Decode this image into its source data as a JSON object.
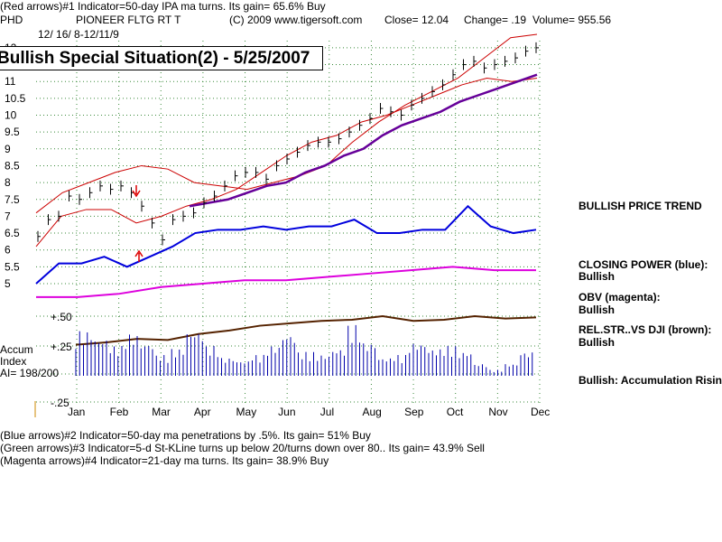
{
  "header": {
    "line1": "(Red arrows)#1 Indicator=50-day IPA ma turns. Its gain= 65.6% Buy",
    "symbol": "PHD",
    "name": "PIONEER FLTG RT T",
    "copyright": "(C) 2009 www.tigersoft.com",
    "close": "Close=  12.04",
    "change": "Change= .19",
    "volume": "Volume= 955.56",
    "dates": "12/ 16/ 8-12/11/9"
  },
  "banner": "Bullish Special Situation(2) - 5/25/2007",
  "footer": {
    "line1": "(Blue arrows)#2 Indicator=50-day ma penetrations by .5%. Its gain= 51% Buy",
    "line2": "(Green arrows)#3 Indicator=5-d St-KLine turns up below 20/turns down over 80.. Its gain= 43.9% Sell",
    "line3": "(Magenta arrows)#4 Indicator=21-day ma turns. Its gain= 38.9% Buy"
  },
  "side_labels": {
    "price_trend": "BULLISH PRICE TREND",
    "closing_power": "CLOSING POWER (blue):",
    "closing_power_val": "Bullish",
    "obv": "OBV (magenta):",
    "obv_val": "Bullish",
    "relstr": "REL.STR..VS DJI (brown):",
    "relstr_val": "Bullish",
    "accum": "Bullish: Accumulation Rising"
  },
  "accum_labels": {
    "accum": "Accum",
    "index": "Index",
    "ai": "AI= 198/200",
    "p50": "+.50",
    "p25": "+.25",
    "m25": "-.25"
  },
  "chart_data": {
    "type": "line",
    "x": [
      "Jan",
      "Feb",
      "Mar",
      "Apr",
      "May",
      "Jun",
      "Jul",
      "Aug",
      "Sep",
      "Oct",
      "Nov",
      "Dec"
    ],
    "price_ticks": [
      "5",
      "5.5",
      "6",
      "6.5",
      "7",
      "7.5",
      "8",
      "8.5",
      "9",
      "9.5",
      "10",
      "10.5",
      "11",
      "12"
    ],
    "ylim": [
      5,
      12
    ],
    "colors": {
      "price": "#000000",
      "bands": "#cc0000",
      "ma": "#660099",
      "closing_power": "#0000dd",
      "obv": "#dd00dd",
      "relstr": "#552200",
      "accum": "#0000aa",
      "grid": "#3a8a3a"
    },
    "price_close": [
      6.4,
      6.9,
      7.0,
      7.6,
      7.5,
      7.7,
      7.9,
      7.8,
      7.9,
      7.7,
      7.3,
      6.8,
      6.3,
      6.9,
      7.0,
      7.1,
      7.4,
      7.6,
      7.9,
      8.2,
      8.3,
      8.3,
      8.1,
      8.5,
      8.7,
      8.9,
      9.1,
      9.2,
      9.2,
      9.3,
      9.5,
      9.7,
      9.9,
      10.2,
      10.1,
      10.0,
      10.3,
      10.5,
      10.7,
      10.9,
      11.2,
      11.5,
      11.6,
      11.4,
      11.5,
      11.6,
      11.7,
      11.9,
      12.0
    ],
    "ma50": [
      7.3,
      7.4,
      7.5,
      7.7,
      7.9,
      8.0,
      8.3,
      8.5,
      8.8,
      9.0,
      9.4,
      9.7,
      9.9,
      10.1,
      10.4,
      10.6,
      10.8,
      11.0,
      11.2
    ],
    "upper_band": [
      7.1,
      7.7,
      8.0,
      8.3,
      8.5,
      8.4,
      8.0,
      7.9,
      7.8,
      8.0,
      8.2,
      8.5,
      9.2,
      9.8,
      10.3,
      10.7,
      11.1,
      11.7,
      12.3,
      12.4
    ],
    "lower_band": [
      6.1,
      7.0,
      7.2,
      7.2,
      6.8,
      7.0,
      7.3,
      7.5,
      7.8,
      8.3,
      8.8,
      9.2,
      9.4,
      9.8,
      10.0,
      10.3,
      10.6,
      10.9,
      11.1,
      11.0,
      11.1
    ],
    "closing_power": [
      5.0,
      5.6,
      5.6,
      5.8,
      5.5,
      5.8,
      6.1,
      6.5,
      6.6,
      6.6,
      6.7,
      6.6,
      6.7,
      6.7,
      6.9,
      6.5,
      6.5,
      6.6,
      6.6,
      7.3,
      6.7,
      6.5,
      6.6
    ],
    "obv": [
      4.6,
      4.6,
      4.7,
      4.9,
      5.0,
      5.1,
      5.1,
      5.2,
      5.3,
      5.4,
      5.5,
      5.4,
      5.4
    ],
    "relstr": [
      0.26,
      0.28,
      0.31,
      0.3,
      0.35,
      0.38,
      0.42,
      0.44,
      0.46,
      0.47,
      0.5,
      0.46,
      0.47,
      0.5,
      0.48,
      0.49
    ],
    "accum_index": [
      0.3,
      0.25,
      0.2,
      0.28,
      0.22,
      0.14,
      0.18,
      0.3,
      0.2,
      0.12,
      0.1,
      0.14,
      0.2,
      0.28,
      0.16,
      0.14,
      0.18,
      0.34,
      0.22,
      0.12,
      0.14,
      0.22,
      0.18,
      0.2,
      0.16,
      0.08,
      0.04,
      0.08,
      0.16
    ]
  }
}
